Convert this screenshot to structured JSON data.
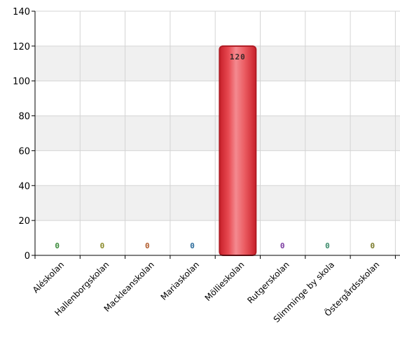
{
  "chart_data": {
    "type": "bar",
    "title": "",
    "xlabel": "",
    "ylabel": "",
    "ylim": [
      0,
      140
    ],
    "yticks": [
      0,
      20,
      40,
      60,
      80,
      100,
      120,
      140
    ],
    "grid": true,
    "categories": [
      "Aléskolan",
      "Hallenborgskolan",
      "Mackleanskolan",
      "Mariaskolan",
      "Möllieskolan",
      "Rutgerskolan",
      "Slimminge by skola",
      "Östergårdsskolan"
    ],
    "values": [
      0,
      0,
      0,
      0,
      120,
      0,
      0,
      0
    ],
    "data_labels": [
      "0",
      "0",
      "0",
      "0",
      "120",
      "0",
      "0",
      "0"
    ],
    "label_colors": [
      "#3a8a3a",
      "#8a8a2a",
      "#b05a2a",
      "#2a6a9a",
      "#3a2a2a",
      "#7a3aa0",
      "#3a8a6a",
      "#7a7a2a"
    ],
    "bar_color": "#e8474f",
    "bar_edge_color": "#b01c24",
    "band_color": "#f0f0f0",
    "grid_color": "#d4d4d4"
  }
}
